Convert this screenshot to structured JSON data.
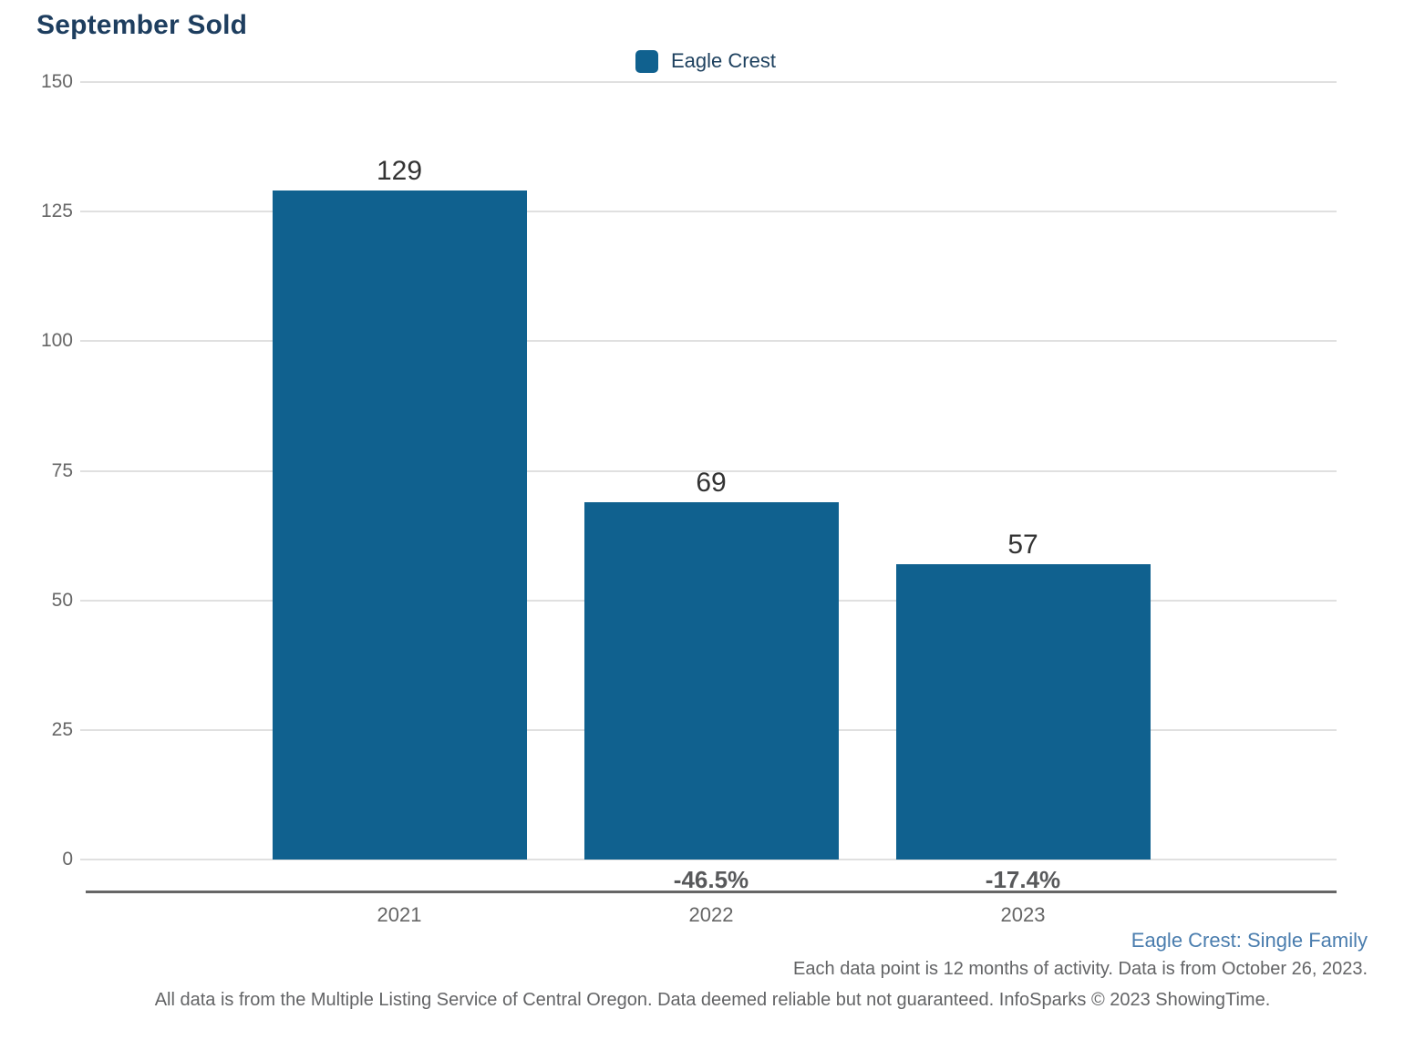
{
  "title": "September Sold",
  "legend": {
    "label": "Eagle Crest",
    "color": "#10618f"
  },
  "chart_data": {
    "type": "bar",
    "title": "September Sold",
    "categories": [
      "2021",
      "2022",
      "2023"
    ],
    "values": [
      129,
      69,
      57
    ],
    "pct_change": [
      "",
      "-46.5%",
      "-17.4%"
    ],
    "legend_entries": [
      "Eagle Crest"
    ],
    "legend_position": "top-center",
    "xlabel": "",
    "ylabel": "",
    "ylim": [
      0,
      150
    ],
    "yticks": [
      0,
      25,
      50,
      75,
      100,
      125,
      150
    ],
    "grid": true,
    "bar_color": "#10618f"
  },
  "footer": {
    "series_note": "Eagle Crest: Single Family",
    "data_note": "Each data point is 12 months of activity. Data is from October 26, 2023.",
    "disclaimer": "All data is from the Multiple Listing Service of Central Oregon. Data deemed reliable but not guaranteed. InfoSparks © 2023 ShowingTime."
  }
}
